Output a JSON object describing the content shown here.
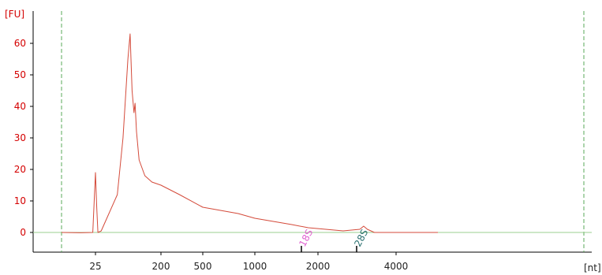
{
  "chart_data": {
    "type": "line",
    "y_unit": "[FU]",
    "x_unit": "[nt]",
    "x_ticks": [
      "25",
      "200",
      "500",
      "1000",
      "2000",
      "4000"
    ],
    "y_ticks": [
      0,
      10,
      20,
      30,
      40,
      50,
      60
    ],
    "ylim": [
      -5,
      70
    ],
    "grid": false,
    "series": [
      {
        "color": "#d44a3a",
        "points": [
          [
            15,
            0
          ],
          [
            20,
            -0.1
          ],
          [
            24,
            0
          ],
          [
            25,
            19
          ],
          [
            26,
            8
          ],
          [
            27,
            0
          ],
          [
            30,
            0.5
          ],
          [
            50,
            12
          ],
          [
            60,
            30
          ],
          [
            70,
            55
          ],
          [
            75,
            63
          ],
          [
            80,
            45
          ],
          [
            85,
            38
          ],
          [
            88,
            41
          ],
          [
            92,
            32
          ],
          [
            100,
            23
          ],
          [
            120,
            18
          ],
          [
            150,
            16
          ],
          [
            200,
            15
          ],
          [
            300,
            12
          ],
          [
            500,
            8
          ],
          [
            800,
            6
          ],
          [
            1000,
            4.5
          ],
          [
            1500,
            2.5
          ],
          [
            1800,
            1.5
          ],
          [
            2500,
            0.5
          ],
          [
            2900,
            1
          ],
          [
            3000,
            2
          ],
          [
            3100,
            1
          ],
          [
            3300,
            0
          ],
          [
            5000,
            0
          ]
        ]
      }
    ],
    "markers": [
      {
        "label": "18S",
        "x": 1800,
        "color": "#e060d0"
      },
      {
        "label": "28S",
        "x": 3200,
        "color": "#2a7070"
      }
    ]
  }
}
